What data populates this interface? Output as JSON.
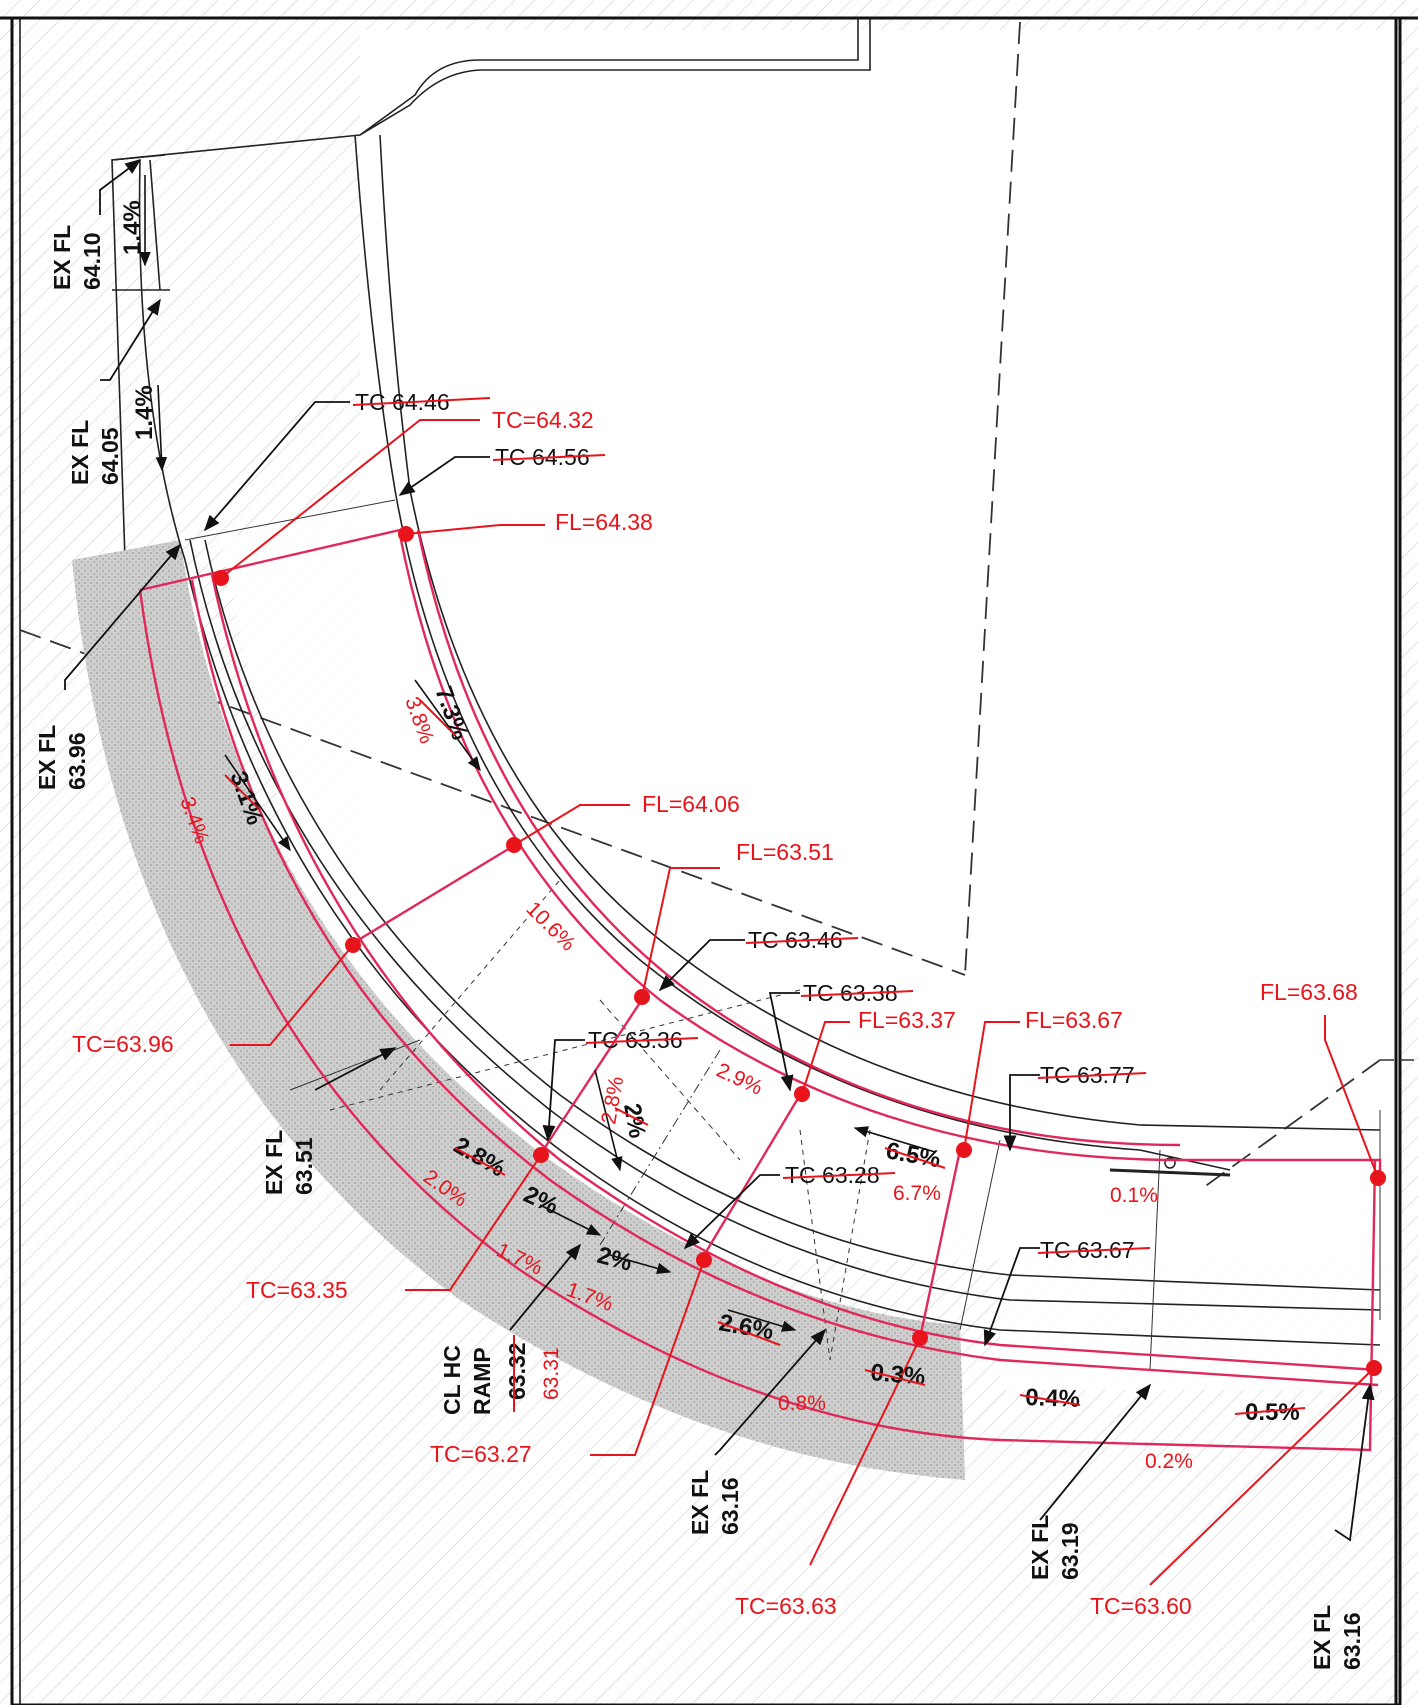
{
  "labels_black": [
    {
      "id": "ex-fl-6410",
      "l1": "EX FL",
      "l2": "64.10"
    },
    {
      "id": "ex-fl-6405",
      "l1": "EX FL",
      "l2": "64.05"
    },
    {
      "id": "ex-fl-6396",
      "l1": "EX FL",
      "l2": "63.96"
    },
    {
      "id": "ex-fl-6351",
      "l1": "EX FL",
      "l2": "63.51"
    },
    {
      "id": "ex-fl-6316a",
      "l1": "EX FL",
      "l2": "63.16"
    },
    {
      "id": "ex-fl-6319",
      "l1": "EX FL",
      "l2": "63.19"
    },
    {
      "id": "ex-fl-6316b",
      "l1": "EX FL",
      "l2": "63.16"
    }
  ],
  "cl_ramp": {
    "l1": "CL HC",
    "l2": "RAMP",
    "old": "63.32",
    "new": "63.31"
  },
  "tc_old": [
    "TC 64.46",
    "TC 64.56",
    "TC 63.46",
    "TC 63.38",
    "TC 63.36",
    "TC 63.77",
    "TC 63.28",
    "TC 63.67"
  ],
  "red_labels": {
    "tc6432": "TC=64.32",
    "fl6438": "FL=64.38",
    "fl6406": "FL=64.06",
    "fl6351": "FL=63.51",
    "tc6396": "TC=63.96",
    "fl6337": "FL=63.37",
    "fl6367": "FL=63.67",
    "fl6368": "FL=63.68",
    "tc6335": "TC=63.35",
    "tc6327": "TC=63.27",
    "tc6363": "TC=63.63",
    "tc6360": "TC=63.60"
  },
  "slopes_black": {
    "s1": "1.4%",
    "s2": "1.4%",
    "s3": "3.1%",
    "s4": "7.3%",
    "s5": "2.8%",
    "s6": "2%",
    "s7": "2%",
    "s8": "2%",
    "s9": "2.6%",
    "s10": "6.5%",
    "s11": "0.3%",
    "s12": "0.4%",
    "s13": "0.5%"
  },
  "slopes_red": {
    "r1": "3.8%",
    "r2": "3.4%",
    "r3": "10.6%",
    "r4": "2.8%",
    "r5": "2.9%",
    "r6": "6.7%",
    "r7": "0.1%",
    "r8": "2.0%",
    "r9": "1.7%",
    "r10": "1.7%",
    "r11": "0.8%",
    "r12": "0.2%"
  }
}
